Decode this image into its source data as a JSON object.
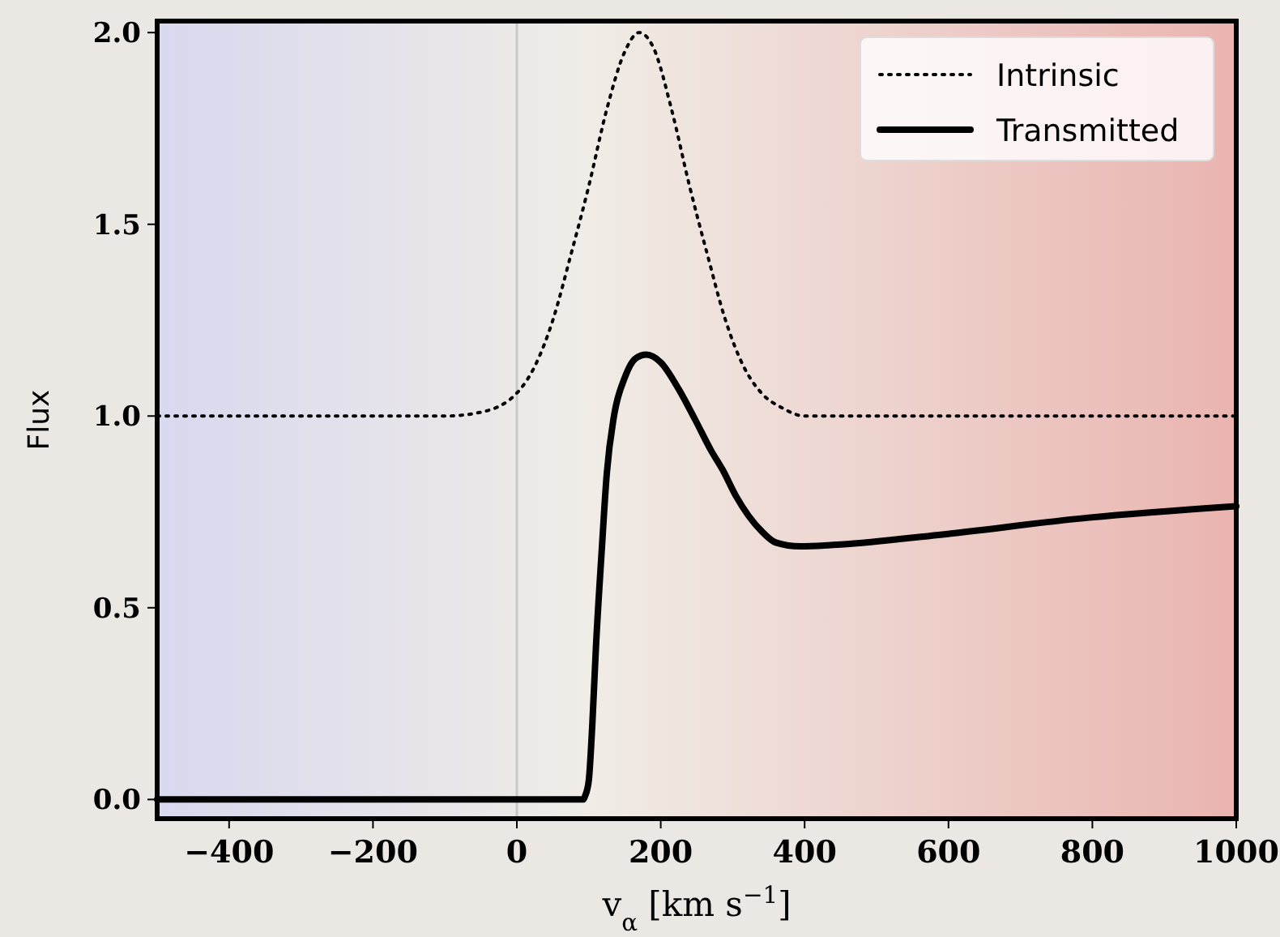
{
  "chart_data": {
    "type": "line",
    "xlabel": "v$_{α}$ [km s$^{−1}$]",
    "ylabel": "Flux",
    "xlim": [
      -500,
      1000
    ],
    "ylim": [
      -0.05,
      2.03
    ],
    "xticks": [
      -400,
      -200,
      0,
      200,
      400,
      600,
      800,
      1000
    ],
    "yticks": [
      {
        "value": 0,
        "label": "0.0"
      },
      {
        "value": 0.5,
        "label": "0.5"
      },
      {
        "value": 1,
        "label": "1.0"
      },
      {
        "value": 1.5,
        "label": "1.5"
      },
      {
        "value": 2,
        "label": "2.0"
      }
    ],
    "grid": false,
    "legend": "top right",
    "ref_lines": [
      {
        "axis": "x",
        "value": 0,
        "color": "#c8c8c8",
        "line_style": "solid"
      }
    ],
    "series": [
      {
        "name": "Intrinsic",
        "color": "#000000",
        "line_style": "dotted",
        "x": [
          -500,
          -100,
          -50,
          0,
          25,
          50,
          75,
          100,
          125,
          150,
          170,
          190,
          215,
          240,
          265,
          290,
          315,
          340,
          370,
          400,
          1000
        ],
        "values": [
          1,
          1,
          1.01,
          1.06,
          1.13,
          1.25,
          1.42,
          1.6,
          1.8,
          1.95,
          2.0,
          1.96,
          1.8,
          1.6,
          1.42,
          1.25,
          1.13,
          1.06,
          1.02,
          1,
          1
        ]
      },
      {
        "name": "Transmitted",
        "color": "#000000",
        "line_style": "solid",
        "x": [
          -500,
          92,
          95,
          100,
          105,
          110,
          118,
          125,
          135,
          150,
          165,
          180,
          200,
          225,
          248,
          270,
          286,
          305,
          322,
          340,
          360,
          394,
          450,
          586,
          795,
          1000
        ],
        "values": [
          0,
          0,
          0.01,
          0.05,
          0.2,
          0.4,
          0.65,
          0.85,
          1.0,
          1.1,
          1.15,
          1.16,
          1.14,
          1.07,
          0.99,
          0.91,
          0.86,
          0.79,
          0.74,
          0.7,
          0.67,
          0.66,
          0.665,
          0.69,
          0.735,
          0.765
        ]
      }
    ]
  }
}
